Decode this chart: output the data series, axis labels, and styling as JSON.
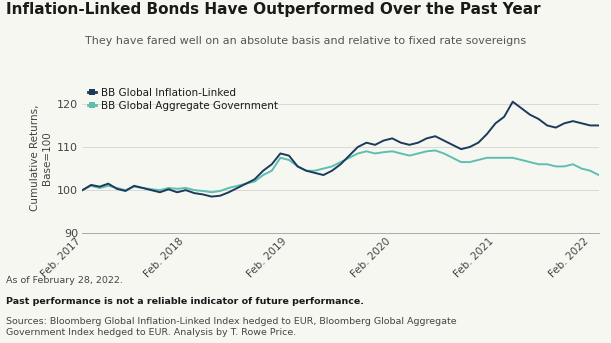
{
  "title": "Inflation-Linked Bonds Have Outperformed Over the Past Year",
  "subtitle": "They have fared well on an absolute basis and relative to fixed rate sovereigns",
  "ylabel": "Cumulative Returns,\nBase=100",
  "footnote1": "As of February 28, 2022.",
  "footnote2": "Past performance is not a reliable indicator of future performance.",
  "footnote3": "Sources: Bloomberg Global Inflation-Linked Index hedged to EUR, Bloomberg Global Aggregate\nGovernment Index hedged to EUR. Analysis by T. Rowe Price.",
  "legend1": "BB Global Inflation-Linked",
  "legend2": "BB Global Aggregate Government",
  "color1": "#1b3a5c",
  "color2": "#5dbfb0",
  "ylim": [
    90,
    125
  ],
  "yticks": [
    90,
    100,
    110,
    120
  ],
  "background": "#f7f7f2",
  "xtick_labels": [
    "Feb. 2017",
    "Feb. 2018",
    "Feb. 2019",
    "Feb. 2020",
    "Feb. 2021",
    "Feb. 2022"
  ],
  "series1": [
    100.0,
    101.2,
    100.8,
    101.5,
    100.3,
    99.8,
    101.0,
    100.5,
    100.0,
    99.5,
    100.2,
    99.5,
    100.0,
    99.3,
    99.0,
    98.5,
    98.7,
    99.5,
    100.5,
    101.5,
    102.5,
    104.5,
    106.0,
    108.5,
    108.0,
    105.5,
    104.5,
    104.0,
    103.5,
    104.5,
    106.0,
    108.0,
    110.0,
    111.0,
    110.5,
    111.5,
    112.0,
    111.0,
    110.5,
    111.0,
    112.0,
    112.5,
    111.5,
    110.5,
    109.5,
    110.0,
    111.0,
    113.0,
    115.5,
    117.0,
    120.5,
    119.0,
    117.5,
    116.5,
    115.0,
    114.5,
    115.5,
    116.0,
    115.5,
    115.0,
    115.0
  ],
  "series2": [
    100.0,
    101.0,
    100.5,
    101.0,
    100.5,
    100.0,
    100.8,
    100.5,
    100.2,
    100.0,
    100.5,
    100.3,
    100.5,
    100.0,
    99.8,
    99.5,
    99.8,
    100.5,
    101.0,
    101.5,
    102.0,
    103.5,
    104.5,
    107.5,
    107.0,
    105.5,
    104.5,
    104.5,
    105.0,
    105.5,
    106.5,
    107.5,
    108.5,
    109.0,
    108.5,
    108.8,
    109.0,
    108.5,
    108.0,
    108.5,
    109.0,
    109.2,
    108.5,
    107.5,
    106.5,
    106.5,
    107.0,
    107.5,
    107.5,
    107.5,
    107.5,
    107.0,
    106.5,
    106.0,
    106.0,
    105.5,
    105.5,
    106.0,
    105.0,
    104.5,
    103.5
  ]
}
